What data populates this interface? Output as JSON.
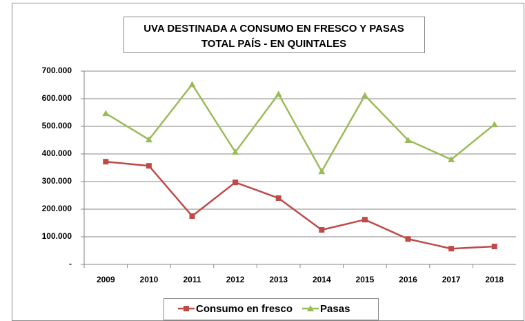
{
  "chart_data": {
    "type": "line",
    "title": "UVA DESTINADA A CONSUMO EN FRESCO Y PASAS",
    "subtitle": "TOTAL PAÍS - EN QUINTALES",
    "categories": [
      "2009",
      "2010",
      "2011",
      "2012",
      "2013",
      "2014",
      "2015",
      "2016",
      "2017",
      "2018"
    ],
    "series": [
      {
        "name": "Consumo en fresco",
        "color": "#be4b48",
        "marker": "square",
        "values": [
          372000,
          357000,
          175000,
          297000,
          240000,
          125000,
          162000,
          92000,
          57000,
          65000
        ]
      },
      {
        "name": "Pasas",
        "color": "#9bbb59",
        "marker": "triangle",
        "values": [
          547000,
          452000,
          652000,
          407000,
          617000,
          337000,
          612000,
          450000,
          380000,
          507000
        ]
      }
    ],
    "ylim": [
      0,
      700000
    ],
    "yticks": [
      {
        "value": 0,
        "label": "-"
      },
      {
        "value": 100000,
        "label": "100.000"
      },
      {
        "value": 200000,
        "label": "200.000"
      },
      {
        "value": 300000,
        "label": "300.000"
      },
      {
        "value": 400000,
        "label": "400.000"
      },
      {
        "value": 500000,
        "label": "500.000"
      },
      {
        "value": 600000,
        "label": "600.000"
      },
      {
        "value": 700000,
        "label": "700.000"
      }
    ],
    "grid": true,
    "legend": "bottom"
  }
}
